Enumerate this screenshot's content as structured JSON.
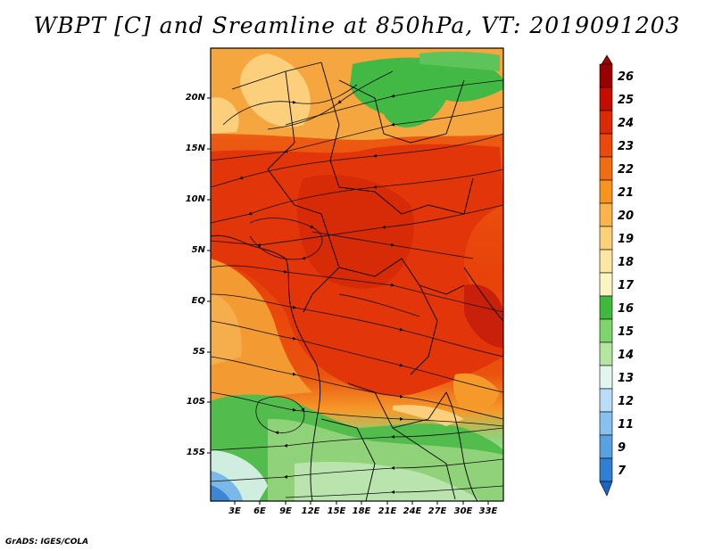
{
  "title": "WBPT [C] and Sreamline at 850hPa, VT: 2019091203",
  "credit": "GrADS: IGES/COLA",
  "map": {
    "variable": "Wet-bulb potential temperature (WBPT) with streamlines",
    "level": "850hPa",
    "valid_time": "2019091203",
    "lat_labels": [
      "20N",
      "15N",
      "10N",
      "5N",
      "EQ",
      "5S",
      "10S",
      "15S"
    ],
    "lon_labels": [
      "3E",
      "6E",
      "9E",
      "12E",
      "15E",
      "18E",
      "21E",
      "24E",
      "27E",
      "30E",
      "33E"
    ]
  },
  "colorbar": {
    "levels": [
      "26",
      "25",
      "24",
      "23",
      "22",
      "21",
      "20",
      "19",
      "18",
      "17",
      "16",
      "15",
      "14",
      "13",
      "12",
      "11",
      "9",
      "7"
    ],
    "colors": [
      "#9b0000",
      "#c40c00",
      "#dd2a06",
      "#ec4a0c",
      "#f26d12",
      "#f7941e",
      "#fbb44c",
      "#fdd07a",
      "#fde6a2",
      "#fbf5c4",
      "#3fba3e",
      "#7fd46b",
      "#b5e6a1",
      "#e2f6f0",
      "#b9ddf6",
      "#88c0ee",
      "#5aa1e2",
      "#2f7fd4",
      "#1d64c2"
    ]
  }
}
